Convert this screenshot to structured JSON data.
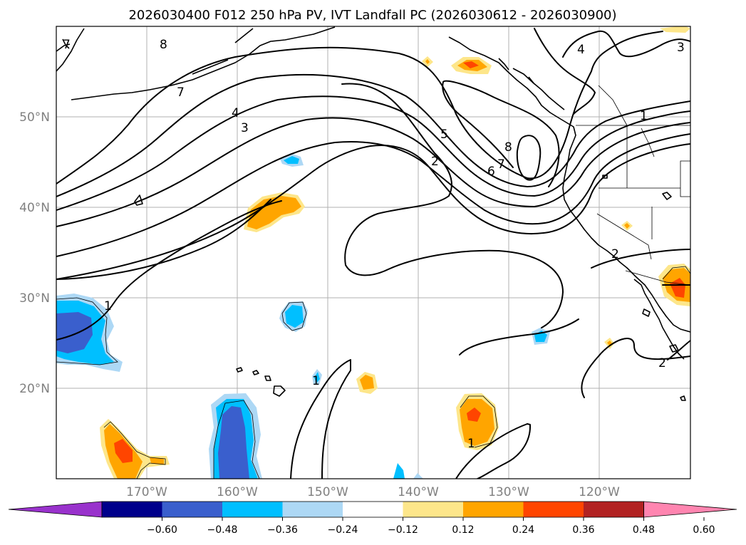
{
  "title": "2026030400 F012 250 hPa PV, IVT Landfall PC (2026030612 - 2026030900)",
  "lat_labels": [
    "50°N",
    "40°N",
    "30°N",
    "20°N"
  ],
  "lon_labels": [
    "170°W",
    "160°W",
    "150°W",
    "140°W",
    "130°W",
    "120°W"
  ],
  "colorbar": {
    "tick_labels": [
      "−0.60",
      "−0.48",
      "−0.36",
      "−0.24",
      "−0.12",
      "0.12",
      "0.24",
      "0.36",
      "0.48",
      "0.60"
    ],
    "colors": [
      "#9932cc",
      "#00008b",
      "#3a5fcd",
      "#00bfff",
      "#add8f5",
      "#ffffff",
      "#fde68a",
      "#ffa500",
      "#ff4500",
      "#b22222",
      "#ff85b0"
    ]
  },
  "pv_contours": [
    "1",
    "2",
    "3",
    "4",
    "5",
    "6",
    "7",
    "8"
  ],
  "map_extent": {
    "lon": [
      -180,
      -110
    ],
    "lat": [
      10,
      60
    ]
  }
}
